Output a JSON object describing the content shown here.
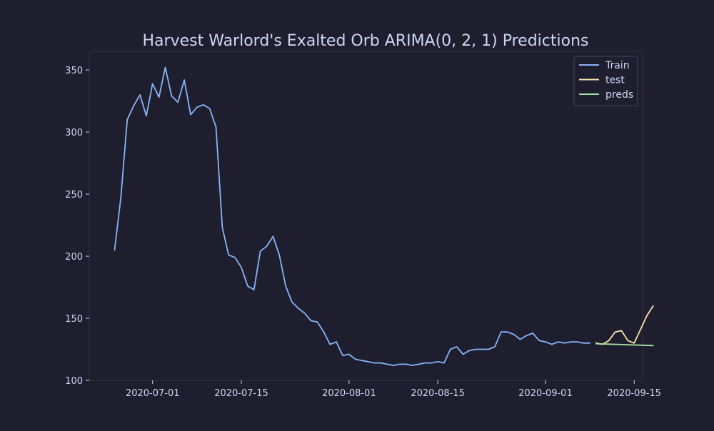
{
  "chart_data": {
    "type": "line",
    "title": "Harvest Warlord's Exalted Orb ARIMA(0, 2, 1) Predictions",
    "xlabel": "",
    "ylabel": "",
    "x_ticks": [
      "2020-07-01",
      "2020-07-15",
      "2020-08-01",
      "2020-08-15",
      "2020-09-01",
      "2020-09-15"
    ],
    "y_ticks": [
      100,
      150,
      200,
      250,
      300,
      350
    ],
    "xlim": [
      "2020-06-21",
      "2020-09-16"
    ],
    "ylim": [
      100,
      365
    ],
    "grid": false,
    "legend_position": "top-right",
    "series": [
      {
        "name": "Train",
        "color": "#89b4fa",
        "points": [
          [
            "2020-06-25",
            205
          ],
          [
            "2020-06-26",
            248
          ],
          [
            "2020-06-27",
            310
          ],
          [
            "2020-06-28",
            321
          ],
          [
            "2020-06-29",
            330
          ],
          [
            "2020-06-30",
            313
          ],
          [
            "2020-07-01",
            339
          ],
          [
            "2020-07-02",
            328
          ],
          [
            "2020-07-03",
            352
          ],
          [
            "2020-07-04",
            329
          ],
          [
            "2020-07-05",
            324
          ],
          [
            "2020-07-06",
            342
          ],
          [
            "2020-07-07",
            314
          ],
          [
            "2020-07-08",
            320
          ],
          [
            "2020-07-09",
            322
          ],
          [
            "2020-07-10",
            319
          ],
          [
            "2020-07-11",
            304
          ],
          [
            "2020-07-12",
            223
          ],
          [
            "2020-07-13",
            201
          ],
          [
            "2020-07-14",
            199
          ],
          [
            "2020-07-15",
            191
          ],
          [
            "2020-07-16",
            176
          ],
          [
            "2020-07-17",
            173
          ],
          [
            "2020-07-18",
            204
          ],
          [
            "2020-07-19",
            208
          ],
          [
            "2020-07-20",
            216
          ],
          [
            "2020-07-21",
            201
          ],
          [
            "2020-07-22",
            176
          ],
          [
            "2020-07-23",
            163
          ],
          [
            "2020-07-24",
            158
          ],
          [
            "2020-07-25",
            154
          ],
          [
            "2020-07-26",
            148
          ],
          [
            "2020-07-27",
            147
          ],
          [
            "2020-07-28",
            139
          ],
          [
            "2020-07-29",
            129
          ],
          [
            "2020-07-30",
            131
          ],
          [
            "2020-07-31",
            120
          ],
          [
            "2020-08-01",
            121
          ],
          [
            "2020-08-02",
            117
          ],
          [
            "2020-08-03",
            116
          ],
          [
            "2020-08-04",
            115
          ],
          [
            "2020-08-05",
            114
          ],
          [
            "2020-08-06",
            114
          ],
          [
            "2020-08-07",
            113
          ],
          [
            "2020-08-08",
            112
          ],
          [
            "2020-08-09",
            113
          ],
          [
            "2020-08-10",
            113
          ],
          [
            "2020-08-11",
            112
          ],
          [
            "2020-08-12",
            113
          ],
          [
            "2020-08-13",
            114
          ],
          [
            "2020-08-14",
            114
          ],
          [
            "2020-08-15",
            115
          ],
          [
            "2020-08-16",
            114
          ],
          [
            "2020-08-17",
            125
          ],
          [
            "2020-08-18",
            127
          ],
          [
            "2020-08-19",
            121
          ],
          [
            "2020-08-20",
            124
          ],
          [
            "2020-08-21",
            125
          ],
          [
            "2020-08-22",
            125
          ],
          [
            "2020-08-23",
            125
          ],
          [
            "2020-08-24",
            127
          ],
          [
            "2020-08-25",
            139
          ],
          [
            "2020-08-26",
            139
          ],
          [
            "2020-08-27",
            137
          ],
          [
            "2020-08-28",
            133
          ],
          [
            "2020-08-29",
            136
          ],
          [
            "2020-08-30",
            138
          ],
          [
            "2020-08-31",
            132
          ],
          [
            "2020-09-01",
            131
          ],
          [
            "2020-09-02",
            129
          ],
          [
            "2020-09-03",
            131
          ],
          [
            "2020-09-04",
            130
          ],
          [
            "2020-09-05",
            131
          ],
          [
            "2020-09-06",
            131
          ],
          [
            "2020-09-07",
            130
          ],
          [
            "2020-09-08",
            130
          ]
        ]
      },
      {
        "name": "test",
        "color": "#f9e2af",
        "points": [
          [
            "2020-09-09",
            130
          ],
          [
            "2020-09-10",
            129
          ],
          [
            "2020-09-11",
            132
          ],
          [
            "2020-09-12",
            139
          ],
          [
            "2020-09-13",
            140
          ],
          [
            "2020-09-14",
            132
          ],
          [
            "2020-09-15",
            130
          ],
          [
            "2020-09-16",
            141
          ],
          [
            "2020-09-17",
            152
          ],
          [
            "2020-09-18",
            160
          ]
        ]
      },
      {
        "name": "preds",
        "color": "#a6e3a1",
        "points": [
          [
            "2020-09-09",
            129.5
          ],
          [
            "2020-09-18",
            128
          ]
        ]
      }
    ]
  },
  "theme": {
    "background": "#1e1e2e",
    "axes_edge": "#313244",
    "text": "#cdd6f4"
  }
}
